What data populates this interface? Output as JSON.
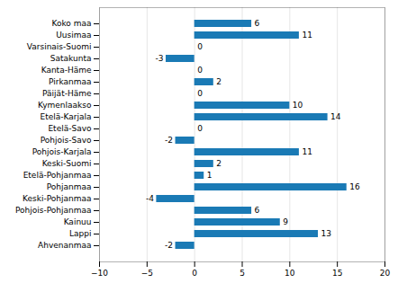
{
  "chart_data": {
    "type": "bar",
    "orientation": "horizontal",
    "categories": [
      "Koko maa",
      "Uusimaa",
      "Varsinais-Suomi",
      "Satakunta",
      "Kanta-Häme",
      "Pirkanmaa",
      "Päijät-Häme",
      "Kymenlaakso",
      "Etelä-Karjala",
      "Etelä-Savo",
      "Pohjois-Savo",
      "Pohjois-Karjala",
      "Keski-Suomi",
      "Etelä-Pohjanmaa",
      "Pohjanmaa",
      "Keski-Pohjanmaa",
      "Pohjois-Pohjanmaa",
      "Kainuu",
      "Lappi",
      "Ahvenanmaa"
    ],
    "values": [
      6,
      11,
      0,
      -3,
      0,
      2,
      0,
      10,
      14,
      0,
      -2,
      11,
      2,
      1,
      16,
      -4,
      6,
      9,
      13,
      -2
    ],
    "color": "#1a7ab5",
    "xlim": [
      -10,
      20
    ],
    "xticks": [
      -10,
      -5,
      0,
      5,
      10,
      15,
      20
    ],
    "grid": true,
    "data_labels": true
  }
}
